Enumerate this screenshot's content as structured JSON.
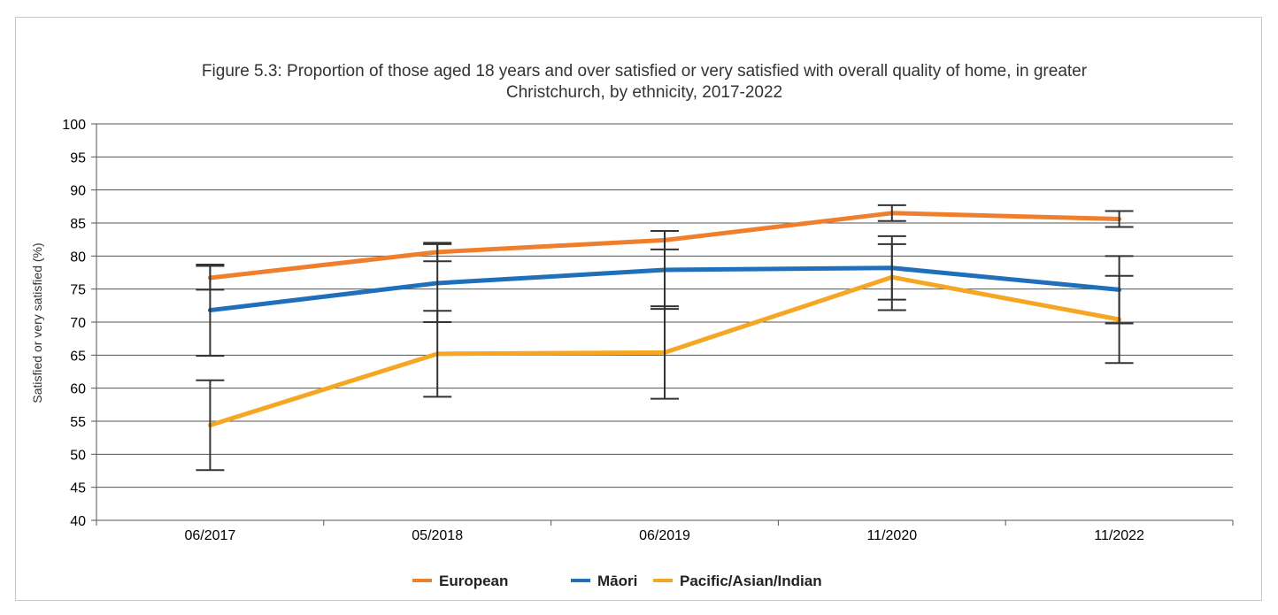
{
  "chart_data": {
    "type": "line",
    "title_line1": "Figure 5.3: Proportion of those aged 18 years and over satisfied or very satisfied with overall quality of home, in greater",
    "title_line2": "Christchurch, by ethnicity, 2017-2022",
    "xlabel": "",
    "ylabel": "Satisfied or very satisfied (%)",
    "ylim": [
      40,
      100
    ],
    "yticks": [
      40,
      45,
      50,
      55,
      60,
      65,
      70,
      75,
      80,
      85,
      90,
      95,
      100
    ],
    "categories": [
      "06/2017",
      "05/2018",
      "06/2019",
      "11/2020",
      "11/2022"
    ],
    "grid": true,
    "legend_position": "bottom",
    "series": [
      {
        "name": "European",
        "color": "#f07f2d",
        "values": [
          76.7,
          80.6,
          82.4,
          86.5,
          85.6
        ],
        "error_low": [
          74.9,
          79.2,
          81.0,
          85.3,
          84.4
        ],
        "error_high": [
          78.5,
          82.0,
          83.8,
          87.7,
          86.8
        ]
      },
      {
        "name": "Māori",
        "color": "#1f6fba",
        "values": [
          71.8,
          75.9,
          77.9,
          78.2,
          74.9
        ],
        "error_low": [
          64.9,
          70.0,
          72.0,
          73.4,
          69.8
        ],
        "error_high": [
          78.7,
          81.8,
          83.8,
          83.0,
          80.0
        ]
      },
      {
        "name": "Pacific/Asian/Indian",
        "color": "#f5a623",
        "values": [
          54.4,
          65.2,
          65.4,
          76.8,
          70.4
        ],
        "error_low": [
          47.6,
          58.7,
          58.4,
          71.8,
          63.8
        ],
        "error_high": [
          61.2,
          71.7,
          72.4,
          81.8,
          77.0
        ]
      }
    ]
  }
}
